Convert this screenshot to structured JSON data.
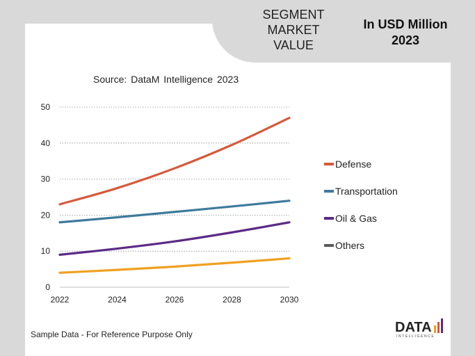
{
  "header": {
    "segment_title": "SEGMENT\nMARKET\nVALUE",
    "unit_title": "In USD Million\n2023"
  },
  "source_note": "Source: DataM Intelligence 2023",
  "footer_note": "Sample Data - For Reference Purpose Only",
  "logo": {
    "text": "DATA",
    "subtext": "INTELLIGENCE"
  },
  "colors": {
    "defense": "#d6593a",
    "transportation": "#3e7a9c",
    "oil_gas": "#5b2a86",
    "others": "#f0a020",
    "legend_others": "#595959"
  },
  "chart_data": {
    "type": "line",
    "x": [
      2022,
      2024,
      2026,
      2028,
      2030
    ],
    "x_ticks": [
      "2022",
      "2024",
      "2026",
      "2028",
      "2030"
    ],
    "y_ticks": [
      "0",
      "10",
      "20",
      "30",
      "40",
      "50"
    ],
    "xlim": [
      2022,
      2030
    ],
    "ylim": [
      0,
      50
    ],
    "grid": "horizontal dotted",
    "legend_position": "right",
    "series": [
      {
        "name": "Defense",
        "color": "#d6593a",
        "values": [
          23,
          27.5,
          33,
          39.5,
          47
        ]
      },
      {
        "name": "Transportation",
        "color": "#3e7a9c",
        "values": [
          18,
          19.4,
          20.9,
          22.4,
          24
        ]
      },
      {
        "name": "Oil & Gas",
        "color": "#5b2a86",
        "values": [
          9,
          10.7,
          12.7,
          15.2,
          18
        ]
      },
      {
        "name": "Others",
        "color": "#f0a020",
        "values": [
          4,
          4.8,
          5.7,
          6.8,
          8
        ]
      }
    ],
    "legend": [
      {
        "label": "Defense",
        "color": "#d6593a"
      },
      {
        "label": "Transportation",
        "color": "#3e7a9c"
      },
      {
        "label": "Oil & Gas",
        "color": "#5b2a86"
      },
      {
        "label": "Others",
        "color": "#595959"
      }
    ]
  }
}
